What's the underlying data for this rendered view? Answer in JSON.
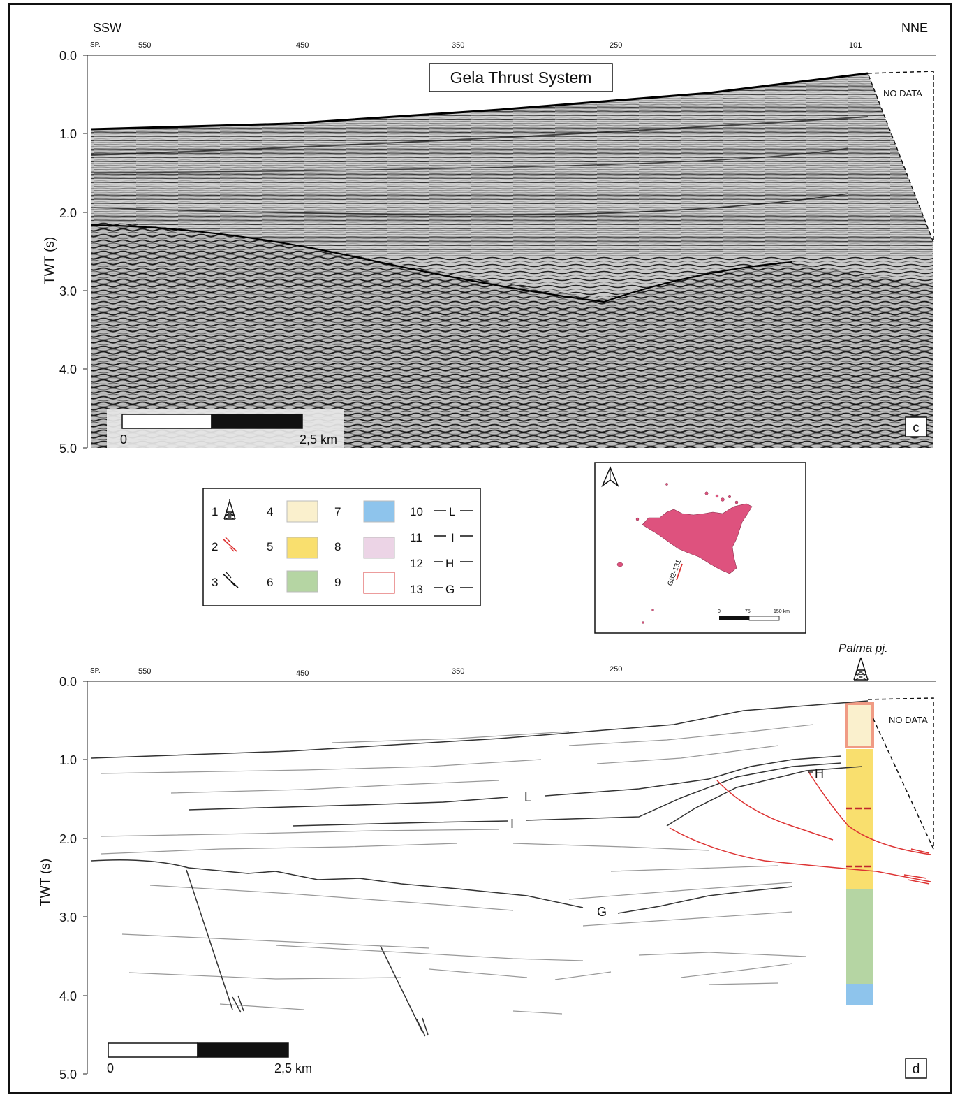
{
  "panel_c": {
    "direction_left": "SSW",
    "direction_right": "NNE",
    "sp_label": "SP.",
    "shotpoints": [
      "550",
      "450",
      "350",
      "250",
      "101"
    ],
    "twt_ticks": [
      "0.0",
      "1.0",
      "2.0",
      "3.0",
      "4.0",
      "5.0"
    ],
    "axis_label": "TWT (s)",
    "title": "Gela Thrust System",
    "no_data": "NO DATA",
    "scale_start": "0",
    "scale_end": "2,5 km",
    "panel_letter": "c"
  },
  "legend": {
    "items": [
      {
        "num": "1",
        "kind": "well-symbol"
      },
      {
        "num": "2",
        "kind": "red-thrust"
      },
      {
        "num": "3",
        "kind": "black-fault"
      },
      {
        "num": "4",
        "kind": "swatch",
        "color": "#faf0cd"
      },
      {
        "num": "5",
        "kind": "swatch",
        "color": "#f9df6e"
      },
      {
        "num": "6",
        "kind": "swatch",
        "color": "#b5d5a3"
      },
      {
        "num": "7",
        "kind": "swatch",
        "color": "#8ec4ec"
      },
      {
        "num": "8",
        "kind": "swatch",
        "color": "#ecd4e6"
      },
      {
        "num": "9",
        "kind": "swatch-outline",
        "color": "#e05a5a"
      },
      {
        "num": "10",
        "kind": "horizon",
        "letter": "L"
      },
      {
        "num": "11",
        "kind": "horizon",
        "letter": "I"
      },
      {
        "num": "12",
        "kind": "horizon",
        "letter": "H"
      },
      {
        "num": "13",
        "kind": "horizon",
        "letter": "G"
      }
    ]
  },
  "inset_map": {
    "line_label": "G82-131",
    "scale_ticks": [
      "0",
      "75",
      "150 km"
    ],
    "land_color": "#de527e"
  },
  "panel_d": {
    "sp_label": "SP.",
    "shotpoints": [
      "550",
      "450",
      "350",
      "250"
    ],
    "twt_ticks": [
      "0.0",
      "1.0",
      "2.0",
      "3.0",
      "4.0",
      "5.0"
    ],
    "axis_label": "TWT (s)",
    "well_name": "Palma pj.",
    "no_data": "NO DATA",
    "horizon_labels": [
      "L",
      "I",
      "H",
      "G"
    ],
    "scale_start": "0",
    "scale_end": "2,5 km",
    "panel_letter": "d"
  }
}
